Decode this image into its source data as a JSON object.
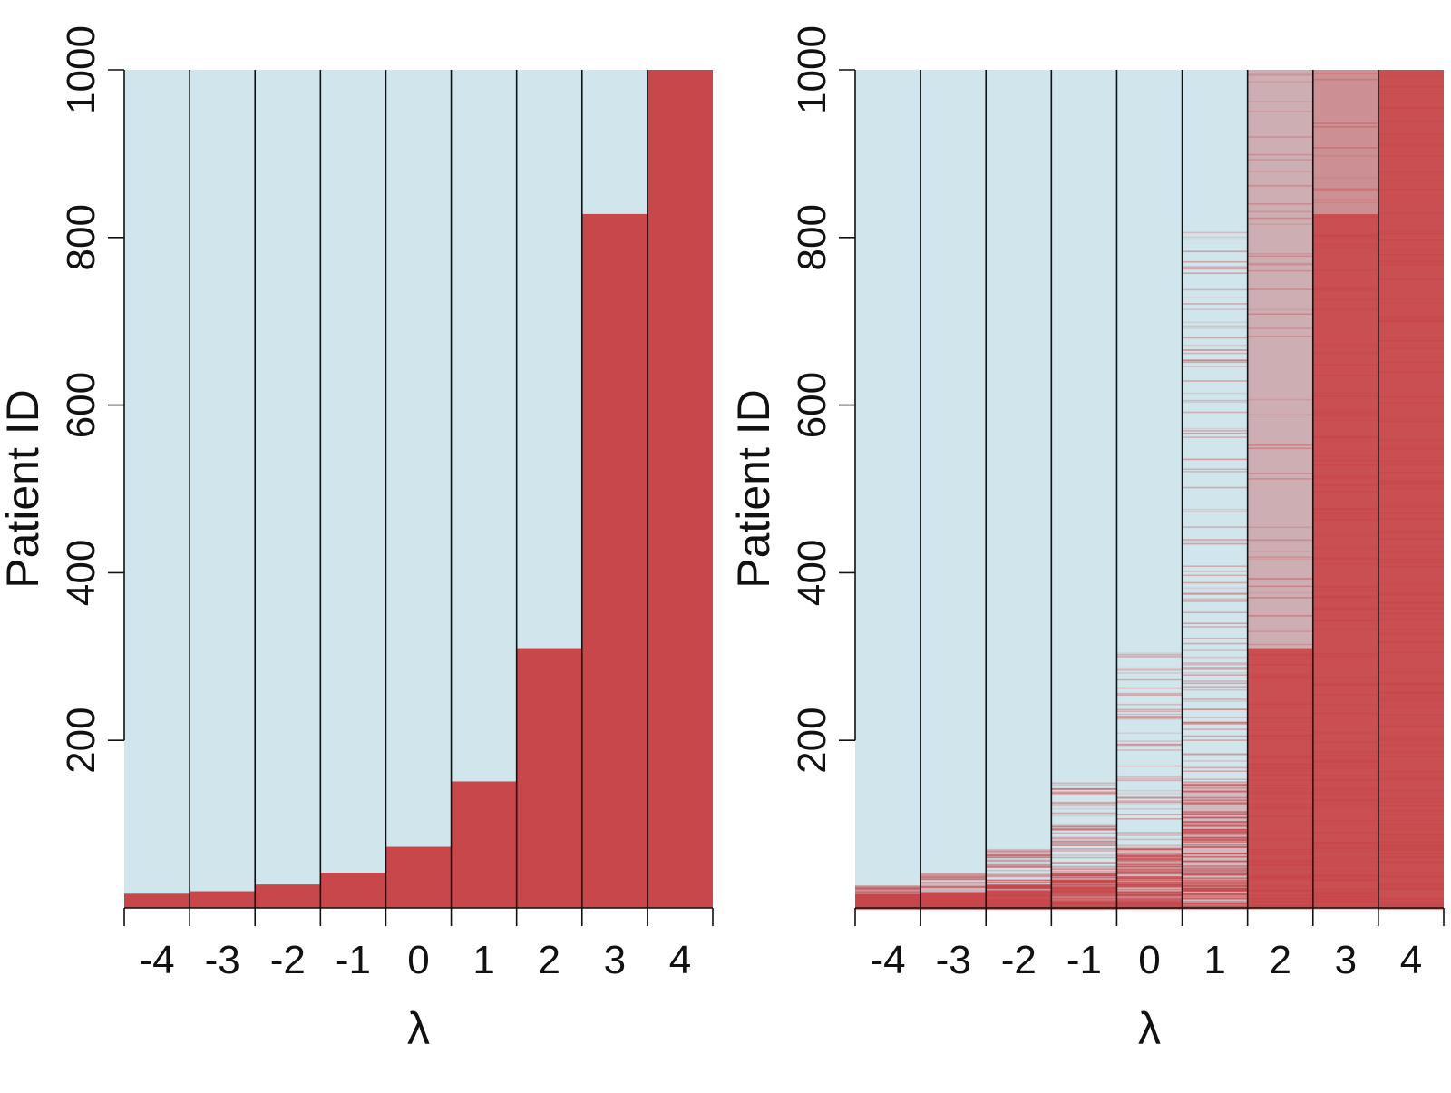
{
  "chart_data": [
    {
      "type": "heatmap",
      "xlabel": "λ",
      "ylabel": "Patient ID",
      "categories": [
        "-4",
        "-3",
        "-2",
        "-1",
        "0",
        "1",
        "2",
        "3",
        "4"
      ],
      "lambda_values": [
        -4,
        -3,
        -2,
        -1,
        0,
        1,
        2,
        3,
        4
      ],
      "ylim": [
        0,
        1000
      ],
      "yticks": [
        "200",
        "400",
        "600",
        "800",
        "1000"
      ],
      "ytick_values": [
        200,
        400,
        600,
        800,
        1000
      ],
      "red_threshold_patient_id": [
        17,
        20,
        28,
        42,
        73,
        151,
        310,
        828,
        1000
      ],
      "pattern": "sharp"
    },
    {
      "type": "heatmap",
      "xlabel": "λ",
      "ylabel": "Patient ID",
      "categories": [
        "-4",
        "-3",
        "-2",
        "-1",
        "0",
        "1",
        "2",
        "3",
        "4"
      ],
      "lambda_values": [
        -4,
        -3,
        -2,
        -1,
        0,
        1,
        2,
        3,
        4
      ],
      "ylim": [
        0,
        1000
      ],
      "yticks": [
        "200",
        "400",
        "600",
        "800",
        "1000"
      ],
      "ytick_values": [
        200,
        400,
        600,
        800,
        1000
      ],
      "red_threshold_patient_id": [
        17,
        20,
        28,
        42,
        73,
        151,
        310,
        828,
        1000
      ],
      "pattern": "noisy"
    }
  ],
  "colors": {
    "light_blue": "#d0e6ec",
    "red": "#c8474a",
    "grid_line": "#111111"
  }
}
